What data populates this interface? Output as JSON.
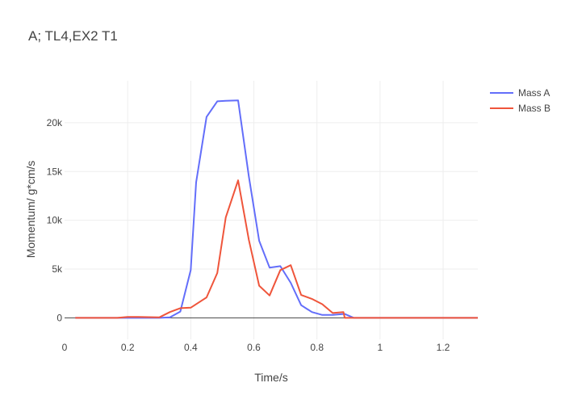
{
  "chart_data": {
    "type": "line",
    "title": "A; TL4,EX2 T1",
    "xlabel": "Time/s",
    "ylabel": "Momentum/ g*cm/s",
    "xlim": [
      0,
      1.31
    ],
    "ylim": [
      -2200,
      24300
    ],
    "x_ticks": [
      {
        "value": 0,
        "label": "0"
      },
      {
        "value": 0.2,
        "label": "0.2"
      },
      {
        "value": 0.4,
        "label": "0.4"
      },
      {
        "value": 0.6,
        "label": "0.6"
      },
      {
        "value": 0.8,
        "label": "0.8"
      },
      {
        "value": 1,
        "label": "1"
      },
      {
        "value": 1.2,
        "label": "1.2"
      }
    ],
    "y_ticks": [
      {
        "value": 0,
        "label": "0"
      },
      {
        "value": 5000,
        "label": "5k"
      },
      {
        "value": 10000,
        "label": "10k"
      },
      {
        "value": 15000,
        "label": "15k"
      },
      {
        "value": 20000,
        "label": "20k"
      }
    ],
    "grid": true,
    "legend_position": "top-right",
    "series": [
      {
        "name": "Mass A",
        "color": "#636efa",
        "x": [
          0.034,
          0.067,
          0.1,
          0.134,
          0.167,
          0.2,
          0.234,
          0.267,
          0.3,
          0.334,
          0.367,
          0.4,
          0.417,
          0.45,
          0.484,
          0.511,
          0.55,
          0.584,
          0.617,
          0.65,
          0.684,
          0.717,
          0.75,
          0.784,
          0.817,
          0.85,
          0.884,
          0.888,
          0.917,
          0.95,
          1.0,
          1.1,
          1.2,
          1.31
        ],
        "y": [
          0,
          0,
          0,
          0,
          0,
          0,
          0,
          0,
          0,
          50,
          650,
          4900,
          13900,
          20600,
          22200,
          22250,
          22300,
          14500,
          7900,
          5150,
          5300,
          3600,
          1300,
          600,
          300,
          300,
          400,
          400,
          0,
          0,
          0,
          0,
          0,
          0
        ]
      },
      {
        "name": "Mass B",
        "color": "#ef553b",
        "x": [
          0.034,
          0.067,
          0.1,
          0.134,
          0.167,
          0.2,
          0.234,
          0.267,
          0.3,
          0.334,
          0.367,
          0.4,
          0.45,
          0.484,
          0.511,
          0.55,
          0.584,
          0.617,
          0.65,
          0.684,
          0.717,
          0.75,
          0.784,
          0.817,
          0.85,
          0.884,
          0.888,
          0.917,
          0.95,
          1.0,
          1.1,
          1.2,
          1.31
        ],
        "y": [
          0,
          0,
          0,
          0,
          0,
          100,
          100,
          80,
          50,
          600,
          1000,
          1050,
          2100,
          4600,
          10300,
          14100,
          8000,
          3300,
          2300,
          4900,
          5400,
          2350,
          1950,
          1400,
          500,
          600,
          0,
          0,
          0,
          0,
          0,
          0,
          0
        ]
      }
    ]
  }
}
